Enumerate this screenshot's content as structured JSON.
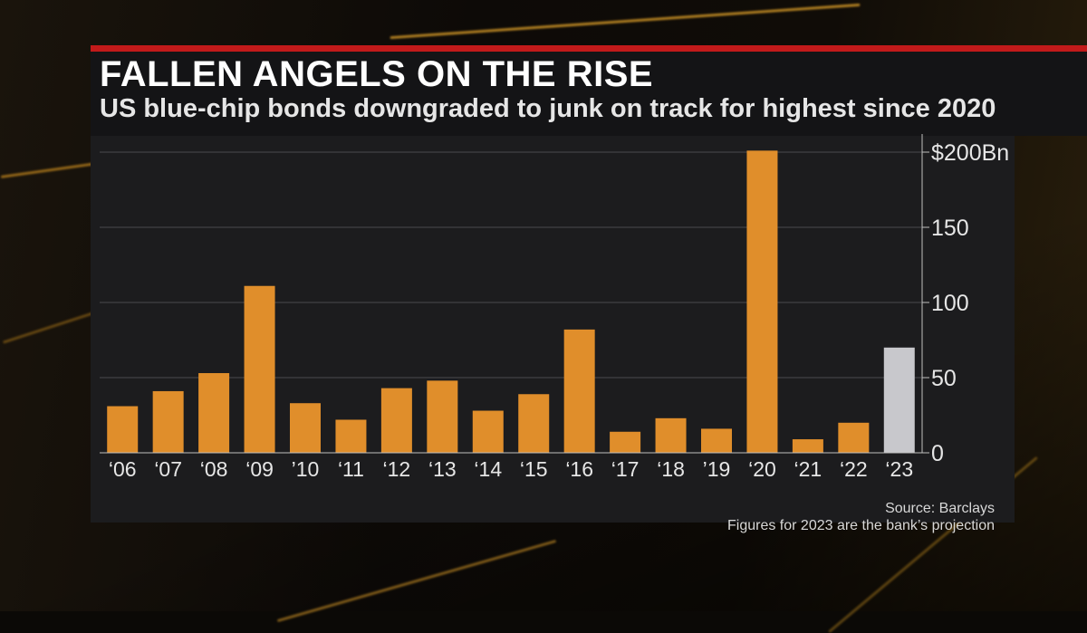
{
  "header": {
    "title": "FALLEN ANGELS ON THE RISE",
    "subtitle": "US blue-chip bonds downgraded to junk on track for highest since 2020"
  },
  "footer": {
    "source": "Source: Barclays",
    "note": "Figures for 2023 are the bank’s projection"
  },
  "colors": {
    "bar": "#e08e2b",
    "projection_bar": "#c8c8cc",
    "header_accent": "#c21a1a"
  },
  "chart_data": {
    "type": "bar",
    "title": "FALLEN ANGELS ON THE RISE",
    "subtitle": "US blue-chip bonds downgraded to junk on track for highest since 2020",
    "categories": [
      "‘06",
      "‘07",
      "‘08",
      "‘09",
      "’10",
      "‘11",
      "‘12",
      "‘13",
      "‘14",
      "‘15",
      "‘16",
      "‘17",
      "‘18",
      "’19",
      "‘20",
      "‘21",
      "‘22",
      "‘23"
    ],
    "values": [
      31,
      41,
      53,
      111,
      33,
      22,
      43,
      48,
      28,
      39,
      82,
      14,
      23,
      16,
      201,
      9,
      20,
      70
    ],
    "projection_category": "‘23",
    "y_ticks": [
      0,
      50,
      100,
      150,
      200
    ],
    "y_tick_labels": [
      "0",
      "50",
      "100",
      "150",
      "$200Bn"
    ],
    "ylim": [
      0,
      200
    ],
    "y_axis_position": "right",
    "grid": true,
    "xlabel": "",
    "ylabel": ""
  }
}
